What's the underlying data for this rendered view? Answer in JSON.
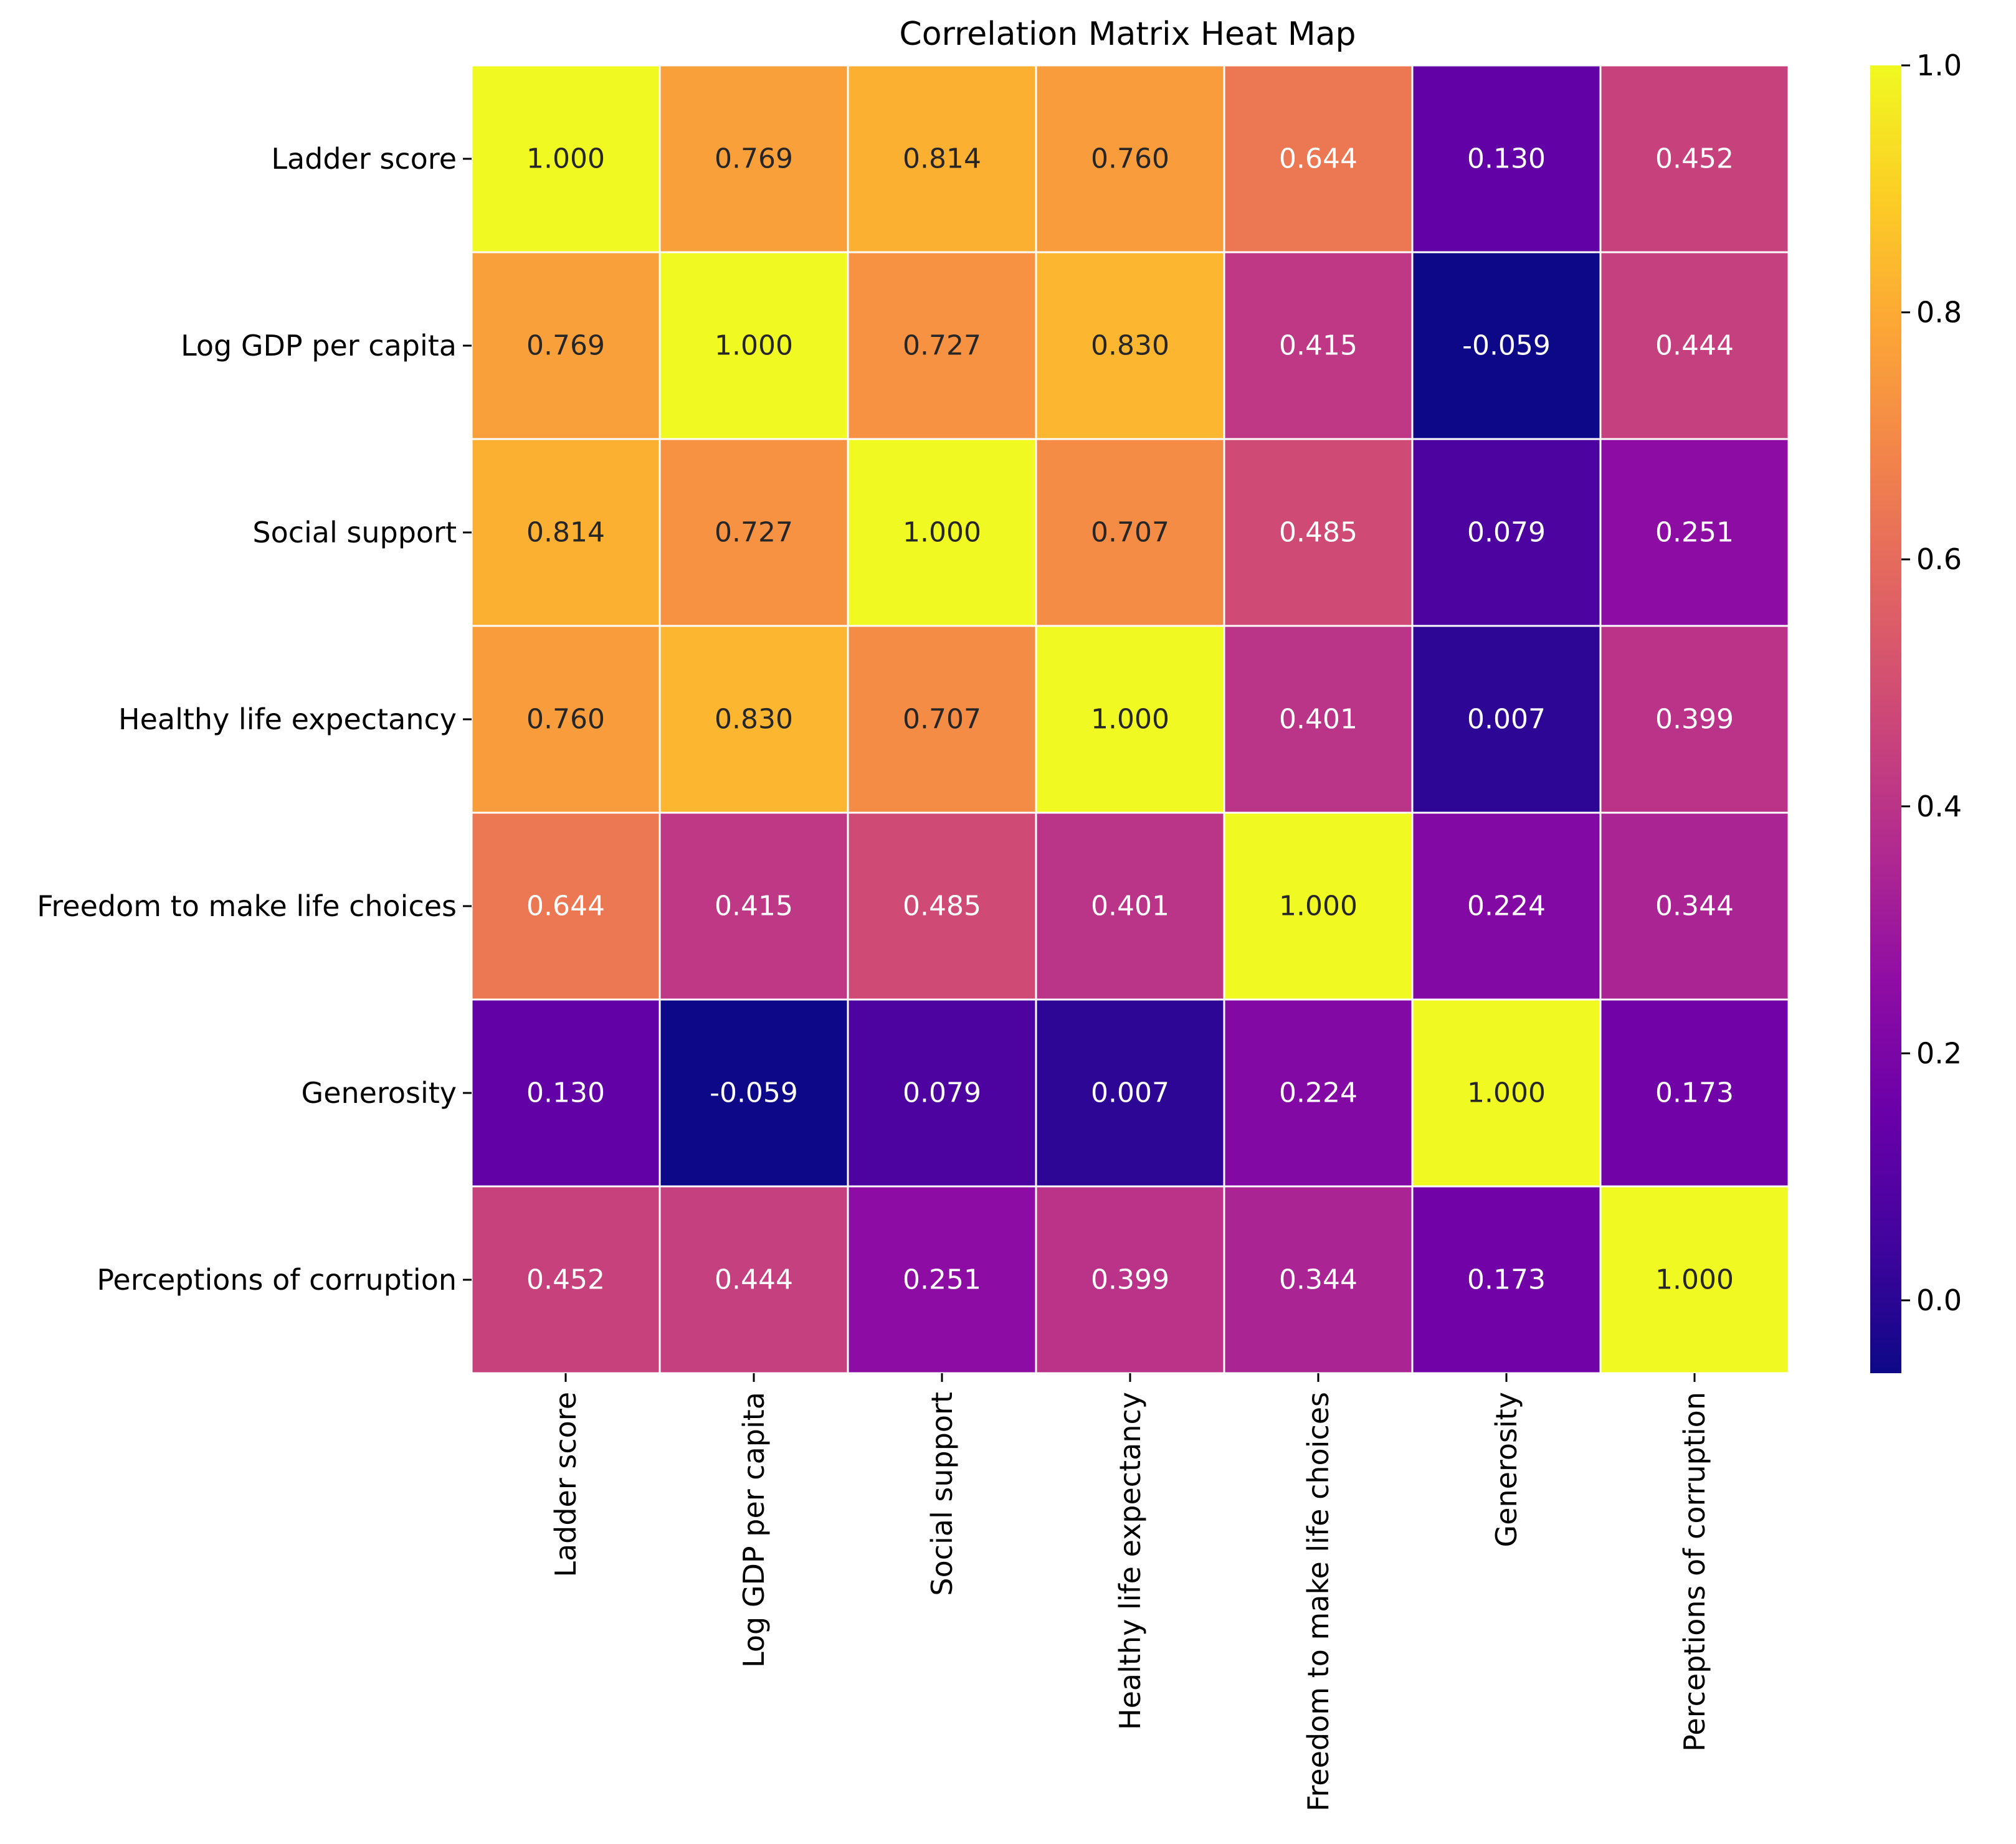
{
  "chart_data": {
    "type": "heatmap",
    "title": "Correlation Matrix Heat Map",
    "xlabel": "",
    "ylabel": "",
    "row_labels": [
      "Ladder score",
      "Log GDP per capita",
      "Social support",
      "Healthy life expectancy",
      "Freedom to make life choices",
      "Generosity",
      "Perceptions of corruption"
    ],
    "col_labels": [
      "Ladder score",
      "Log GDP per capita",
      "Social support",
      "Healthy life expectancy",
      "Freedom to make life choices",
      "Generosity",
      "Perceptions of corruption"
    ],
    "values": [
      [
        1.0,
        0.769,
        0.814,
        0.76,
        0.644,
        0.13,
        0.452
      ],
      [
        0.769,
        1.0,
        0.727,
        0.83,
        0.415,
        -0.059,
        0.444
      ],
      [
        0.814,
        0.727,
        1.0,
        0.707,
        0.485,
        0.079,
        0.251
      ],
      [
        0.76,
        0.83,
        0.707,
        1.0,
        0.401,
        0.007,
        0.399
      ],
      [
        0.644,
        0.415,
        0.485,
        0.401,
        1.0,
        0.224,
        0.344
      ],
      [
        0.13,
        -0.059,
        0.079,
        0.007,
        0.224,
        1.0,
        0.173
      ],
      [
        0.452,
        0.444,
        0.251,
        0.399,
        0.344,
        0.173,
        1.0
      ]
    ],
    "value_format": "3 decimals",
    "colormap": "plasma",
    "vmin": -0.059,
    "vmax": 1.0,
    "colorbar": {
      "ticks": [
        0.0,
        0.2,
        0.4,
        0.6,
        0.8,
        1.0
      ],
      "tick_labels": [
        "0.0",
        "0.2",
        "0.4",
        "0.6",
        "0.8",
        "1.0"
      ]
    },
    "cell_border_color": "#ffffff"
  }
}
